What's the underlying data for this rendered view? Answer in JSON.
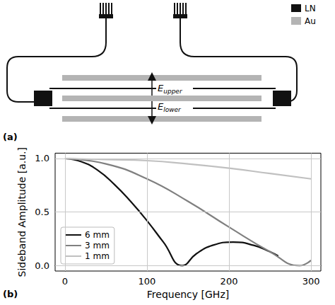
{
  "figure": {
    "panel_labels": [
      "(a)",
      "(b)"
    ]
  },
  "diagram": {
    "legend": [
      {
        "label": "LN",
        "color": "#111111"
      },
      {
        "label": "Au",
        "color": "#b4b4b4"
      }
    ],
    "fields": [
      {
        "symbol": "E",
        "subscript": "upper"
      },
      {
        "symbol": "E",
        "subscript": "lower"
      }
    ]
  },
  "chart_data": {
    "type": "line",
    "x_label": "Frequency [GHz]",
    "y_label": "Sideband Amplitude [a.u.]",
    "xlim": [
      -12,
      312
    ],
    "xticks": [
      0,
      100,
      200,
      300
    ],
    "ylim": [
      -0.05,
      1.05
    ],
    "yticks": [
      {
        "value": 0,
        "label": "0.0"
      },
      {
        "value": 0.5,
        "label": "0.5"
      },
      {
        "value": 1,
        "label": "1.0"
      }
    ],
    "grid": true,
    "legend": "lower left",
    "series": [
      {
        "name": "6 mm",
        "color": "#111111",
        "x": [
          0,
          20,
          40,
          60,
          80,
          100,
          120,
          143,
          160,
          180,
          205,
          230,
          250,
          260
        ],
        "values": [
          1.0,
          0.97,
          0.89,
          0.76,
          0.6,
          0.42,
          0.22,
          0.0,
          0.11,
          0.19,
          0.22,
          0.19,
          0.13,
          0.09
        ]
      },
      {
        "name": "3 mm",
        "color": "#808080",
        "x": [
          0,
          50,
          100,
          150,
          200,
          250,
          286,
          300
        ],
        "values": [
          1.0,
          0.95,
          0.81,
          0.6,
          0.36,
          0.13,
          0.0,
          0.05
        ]
      },
      {
        "name": "1 mm",
        "color": "#c0c0c0",
        "x": [
          0,
          50,
          100,
          150,
          200,
          250,
          300
        ],
        "values": [
          1.0,
          0.99,
          0.98,
          0.95,
          0.91,
          0.86,
          0.81
        ]
      }
    ]
  }
}
